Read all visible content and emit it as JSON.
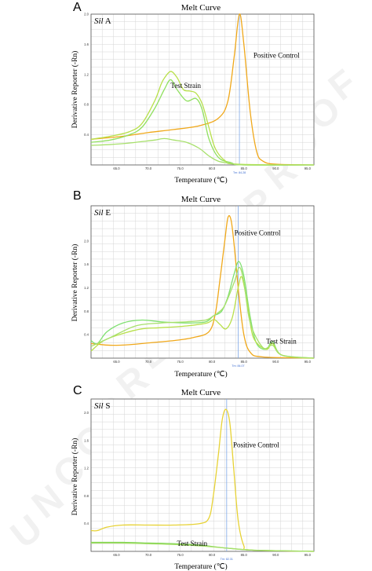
{
  "chart_data": [
    {
      "type": "line",
      "panel": "A",
      "gene_italic": "Sil",
      "gene_suffix": "A",
      "title": "Melt Curve",
      "xlabel": "Temperature (℃)",
      "ylabel": "Derivative Reporter (-Rn)",
      "xlim": [
        61,
        96
      ],
      "ylim": [
        0,
        2.0
      ],
      "xticks": [
        65.0,
        70.0,
        75.0,
        80.0,
        85.0,
        90.0,
        95.0
      ],
      "yticks": [
        0.4,
        0.8,
        1.2,
        1.6,
        2.0
      ],
      "cursor": {
        "x": 84.3,
        "label": "Tm: 84.28"
      },
      "annotations": [
        {
          "text": "Test Strain",
          "x": 73.5,
          "y": 1.02
        },
        {
          "text": "Positive Control",
          "x": 86.5,
          "y": 1.42
        }
      ],
      "series": [
        {
          "name": "Positive Control",
          "color": "#f0a81a",
          "x": [
            61,
            66,
            70,
            74,
            78,
            81,
            82.5,
            83.5,
            84.3,
            85.0,
            86.0,
            87.0,
            88.0,
            90,
            96
          ],
          "y": [
            0.34,
            0.38,
            0.43,
            0.47,
            0.52,
            0.62,
            0.85,
            1.45,
            2.0,
            1.6,
            0.7,
            0.18,
            0.05,
            0.01,
            0.0
          ]
        },
        {
          "name": "",
          "color": "#90e060",
          "x": [
            61,
            64,
            67,
            69,
            71,
            72.5,
            73.5,
            74.5,
            76,
            77.5,
            78.5,
            79.5,
            81,
            83,
            85,
            96
          ],
          "y": [
            0.3,
            0.33,
            0.4,
            0.5,
            0.75,
            1.0,
            1.13,
            1.0,
            0.85,
            0.88,
            0.72,
            0.35,
            0.1,
            0.03,
            0.0,
            0.0
          ]
        },
        {
          "name": "",
          "color": "#b8e04a",
          "x": [
            61,
            64,
            67,
            69,
            71,
            72,
            72.5,
            73.5,
            74.5,
            75.5,
            76.5,
            77.5,
            78.5,
            79.5,
            80.5,
            82,
            84,
            96
          ],
          "y": [
            0.34,
            0.38,
            0.44,
            0.55,
            0.85,
            1.07,
            1.15,
            1.24,
            1.16,
            1.0,
            0.98,
            0.95,
            0.8,
            0.5,
            0.22,
            0.06,
            0.01,
            0.0
          ]
        },
        {
          "name": "",
          "color": "#a7e06b",
          "x": [
            61,
            64,
            67,
            69,
            71,
            72.5,
            74,
            76,
            78,
            79.5,
            81,
            83,
            85,
            96
          ],
          "y": [
            0.26,
            0.27,
            0.29,
            0.31,
            0.33,
            0.35,
            0.33,
            0.3,
            0.22,
            0.12,
            0.05,
            0.02,
            0.0,
            0.0
          ]
        }
      ]
    },
    {
      "type": "line",
      "panel": "B",
      "gene_italic": "Sil",
      "gene_suffix": "E",
      "title": "Melt Curve",
      "xlabel": "Temperature (℃)",
      "ylabel": "Derivative Reporter (-Rn)",
      "xlim": [
        61,
        96
      ],
      "ylim": [
        0,
        2.6
      ],
      "xticks": [
        65.0,
        70.0,
        75.0,
        80.0,
        85.0,
        90.0,
        95.0
      ],
      "yticks": [
        0.4,
        0.8,
        1.2,
        1.6,
        2.0
      ],
      "cursor": {
        "x": 84.1,
        "label": "Tm: 84.07"
      },
      "annotations": [
        {
          "text": "Positive Control",
          "x": 83.5,
          "y": 2.1
        },
        {
          "text": "Test Strain",
          "x": 88.5,
          "y": 0.25
        }
      ],
      "series": [
        {
          "name": "Positive Control",
          "color": "#f0a81a",
          "x": [
            61,
            64,
            67,
            70,
            74,
            77,
            79.5,
            80.5,
            81.2,
            82,
            82.5,
            83,
            83.5,
            84.2,
            85,
            86,
            88,
            96
          ],
          "y": [
            0.25,
            0.22,
            0.23,
            0.26,
            0.3,
            0.35,
            0.45,
            0.75,
            1.3,
            2.0,
            2.4,
            2.35,
            1.9,
            1.1,
            0.4,
            0.1,
            0.02,
            0.0
          ]
        },
        {
          "name": "",
          "color": "#7fe070",
          "x": [
            61,
            62,
            63.5,
            66,
            69,
            72,
            76,
            79,
            80.2,
            81.5,
            82.5,
            83.5,
            84.2,
            85,
            86,
            87,
            88.5,
            89.5,
            91,
            96
          ],
          "y": [
            0.3,
            0.25,
            0.45,
            0.6,
            0.65,
            0.62,
            0.6,
            0.62,
            0.72,
            0.8,
            1.05,
            1.45,
            1.65,
            1.4,
            0.7,
            0.25,
            0.15,
            0.28,
            0.05,
            0.0
          ]
        },
        {
          "name": "",
          "color": "#b8e04a",
          "x": [
            61,
            63,
            66,
            69,
            72,
            76,
            79.2,
            80.3,
            81.2,
            82.2,
            83.2,
            84.1,
            84.7,
            85.6,
            86.5,
            88.5,
            89.5,
            91,
            96
          ],
          "y": [
            0.12,
            0.3,
            0.42,
            0.5,
            0.52,
            0.55,
            0.6,
            0.66,
            0.58,
            0.5,
            0.7,
            1.2,
            1.38,
            0.9,
            0.35,
            0.15,
            0.25,
            0.05,
            0.0
          ]
        },
        {
          "name": "",
          "color": "#a7e06b",
          "x": [
            61,
            64,
            68,
            72,
            76,
            79,
            80.2,
            81,
            82,
            83.5,
            84.3,
            85,
            86,
            88,
            89.5,
            91,
            96
          ],
          "y": [
            0.2,
            0.35,
            0.55,
            0.6,
            0.62,
            0.65,
            0.72,
            0.78,
            0.9,
            1.3,
            1.55,
            1.3,
            0.6,
            0.18,
            0.22,
            0.05,
            0.0
          ]
        }
      ]
    },
    {
      "type": "line",
      "panel": "C",
      "gene_italic": "Sil",
      "gene_suffix": "S",
      "title": "Melt Curve",
      "xlabel": "Temperature (℃)",
      "ylabel": "Derivative Reporter (-Rn)",
      "xlim": [
        61,
        96
      ],
      "ylim": [
        0,
        2.2
      ],
      "xticks": [
        65.0,
        70.0,
        75.0,
        80.0,
        85.0,
        90.0,
        95.0
      ],
      "yticks": [
        0.4,
        0.8,
        1.2,
        1.6,
        2.0
      ],
      "cursor": {
        "x": 82.3,
        "label": "Tm: 82.31"
      },
      "annotations": [
        {
          "text": "Positive Control",
          "x": 83.3,
          "y": 1.5
        },
        {
          "text": "Test Strain",
          "x": 74.5,
          "y": 0.08
        }
      ],
      "series": [
        {
          "name": "Positive Control",
          "color": "#e7d235",
          "x": [
            61,
            62,
            63.5,
            66,
            70,
            74,
            78,
            79.5,
            80.2,
            81.0,
            81.6,
            82.2,
            82.8,
            83.4,
            84.1,
            85,
            86,
            96
          ],
          "y": [
            0.3,
            0.3,
            0.35,
            0.38,
            0.38,
            0.38,
            0.4,
            0.48,
            0.8,
            1.4,
            1.9,
            2.05,
            1.85,
            1.2,
            0.45,
            0.08,
            0.02,
            0.0
          ]
        },
        {
          "name": "",
          "color": "#76d04a",
          "x": [
            61,
            66,
            70,
            74,
            78,
            82,
            86,
            90,
            96
          ],
          "y": [
            0.13,
            0.13,
            0.12,
            0.11,
            0.09,
            0.05,
            0.02,
            0.01,
            0.0
          ]
        },
        {
          "name": "",
          "color": "#a7e06b",
          "x": [
            61,
            66,
            70,
            74,
            78,
            82,
            86,
            90,
            96
          ],
          "y": [
            0.12,
            0.12,
            0.11,
            0.1,
            0.08,
            0.05,
            0.02,
            0.01,
            0.0
          ]
        }
      ]
    }
  ],
  "watermark_letters": [
    "U",
    "N",
    "C",
    "O",
    "R",
    "R",
    "E",
    "C",
    "T",
    "E",
    "D",
    "P",
    "R",
    "O",
    "O",
    "F"
  ]
}
